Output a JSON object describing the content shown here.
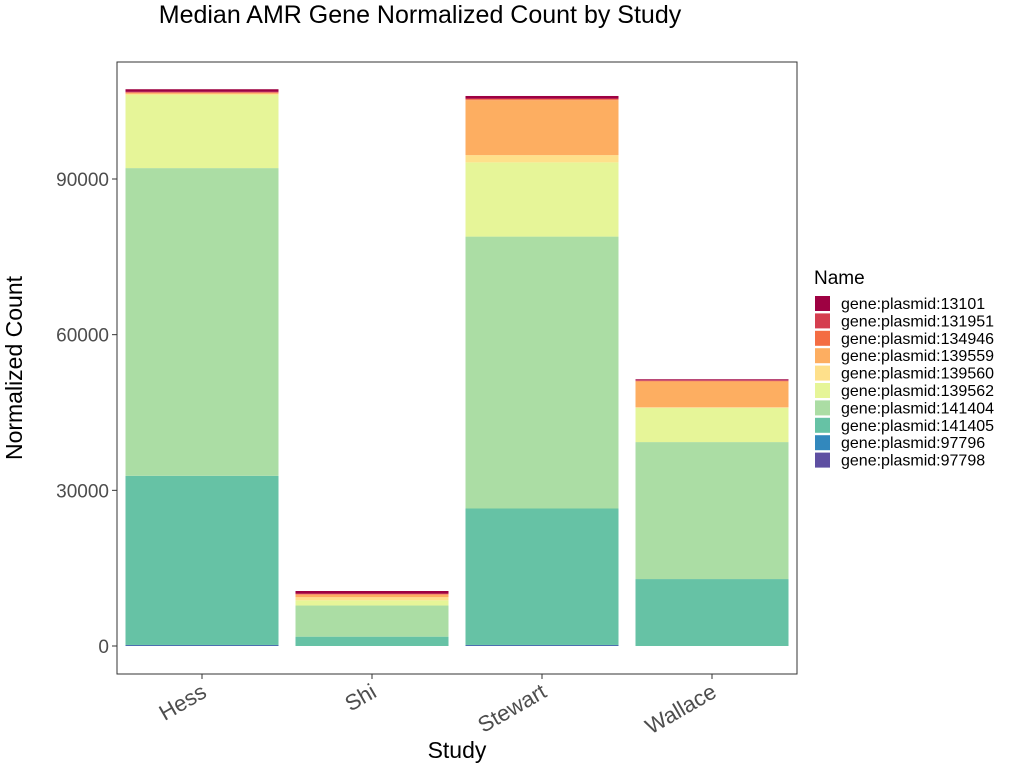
{
  "chart_data": {
    "type": "bar",
    "stacked": true,
    "title": "Median AMR Gene Normalized Count by Study",
    "xlabel": "Study",
    "ylabel": "Normalized Count",
    "categories": [
      "Hess",
      "Shi",
      "Stewart",
      "Wallace"
    ],
    "ylim": [
      -9000,
      188000
    ],
    "yticks": [
      0,
      30000,
      60000,
      90000
    ],
    "grid": false,
    "legend": {
      "title": "Name",
      "placement": "right"
    },
    "series": [
      {
        "name": "gene:plasmid:97798",
        "color": "#5E4FA2",
        "values": [
          100,
          0,
          100,
          0
        ]
      },
      {
        "name": "gene:plasmid:97796",
        "color": "#3288BD",
        "values": [
          100,
          0,
          100,
          0
        ]
      },
      {
        "name": "gene:plasmid:141405",
        "color": "#66C2A5",
        "values": [
          32600,
          1800,
          26300,
          12900
        ]
      },
      {
        "name": "gene:plasmid:141404",
        "color": "#ABDDA4",
        "values": [
          59300,
          6000,
          52400,
          26400
        ]
      },
      {
        "name": "gene:plasmid:139562",
        "color": "#E6F598",
        "values": [
          14100,
          1000,
          14300,
          6600
        ]
      },
      {
        "name": "gene:plasmid:139560",
        "color": "#FEE08B",
        "values": [
          200,
          600,
          1400,
          100
        ]
      },
      {
        "name": "gene:plasmid:139559",
        "color": "#FDAE61",
        "values": [
          200,
          500,
          10600,
          5000
        ]
      },
      {
        "name": "gene:plasmid:134946",
        "color": "#F46D43",
        "values": [
          100,
          100,
          200,
          100
        ]
      },
      {
        "name": "gene:plasmid:131951",
        "color": "#D53E4F",
        "values": [
          100,
          100,
          100,
          100
        ]
      },
      {
        "name": "gene:plasmid:13101",
        "color": "#9E0142",
        "values": [
          500,
          500,
          500,
          200
        ]
      }
    ]
  },
  "legend_order": [
    "gene:plasmid:13101",
    "gene:plasmid:131951",
    "gene:plasmid:134946",
    "gene:plasmid:139559",
    "gene:plasmid:139560",
    "gene:plasmid:139562",
    "gene:plasmid:141404",
    "gene:plasmid:141405",
    "gene:plasmid:97796",
    "gene:plasmid:97798"
  ]
}
